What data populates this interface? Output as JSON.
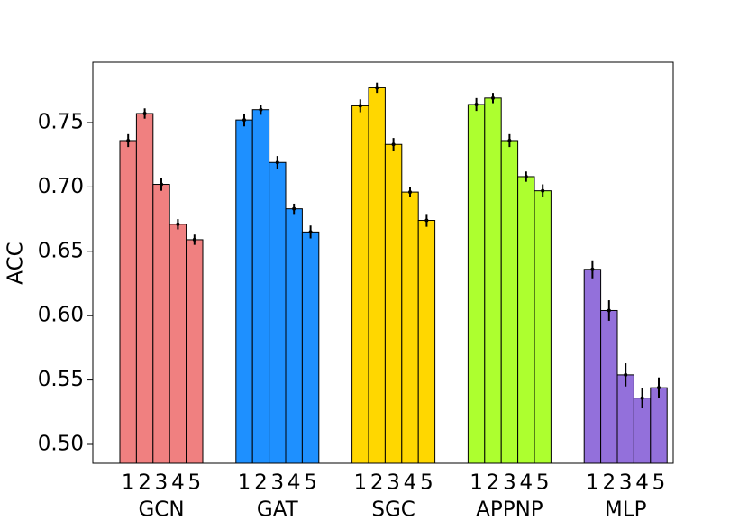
{
  "chart_data": {
    "type": "bar",
    "ylabel": "ACC",
    "bar_labels": [
      "1",
      "2",
      "3",
      "4",
      "5"
    ],
    "series": [
      {
        "name": "GCN",
        "color": "#f08080",
        "values": [
          0.736,
          0.757,
          0.702,
          0.671,
          0.659
        ],
        "errors": [
          0.005,
          0.004,
          0.005,
          0.004,
          0.004
        ]
      },
      {
        "name": "GAT",
        "color": "#1e90ff",
        "values": [
          0.752,
          0.76,
          0.719,
          0.683,
          0.665
        ],
        "errors": [
          0.005,
          0.004,
          0.005,
          0.004,
          0.005
        ]
      },
      {
        "name": "SGC",
        "color": "#ffd700",
        "values": [
          0.763,
          0.777,
          0.733,
          0.696,
          0.674
        ],
        "errors": [
          0.005,
          0.004,
          0.005,
          0.004,
          0.005
        ]
      },
      {
        "name": "APPNP",
        "color": "#adff2f",
        "values": [
          0.764,
          0.769,
          0.736,
          0.708,
          0.697
        ],
        "errors": [
          0.005,
          0.004,
          0.005,
          0.004,
          0.005
        ]
      },
      {
        "name": "MLP",
        "color": "#9370db",
        "values": [
          0.636,
          0.604,
          0.554,
          0.536,
          0.544
        ],
        "errors": [
          0.007,
          0.008,
          0.009,
          0.008,
          0.008
        ]
      }
    ],
    "ylim": [
      0.4853,
      0.7969
    ],
    "yticks": [
      {
        "value": 0.5,
        "label": "0.50"
      },
      0.55,
      {
        "value": 0.6,
        "label": "0.60"
      },
      0.65,
      {
        "value": 0.7,
        "label": "0.70"
      },
      0.75
    ]
  }
}
